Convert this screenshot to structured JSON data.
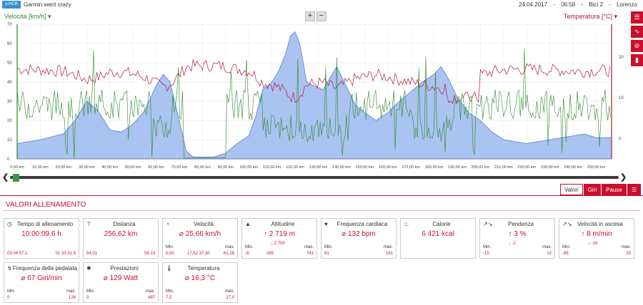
{
  "topbar": {
    "logo_text": "s-HCB",
    "title": "Garmin went crazy",
    "date": "24.04.2017",
    "time": "06:58",
    "bike": "Bici 2",
    "user": "Lorenzo"
  },
  "chart_header": {
    "left_axis": "Velocità [km/h]",
    "right_axis": "Temperatura [°C]",
    "zoom_in": "+",
    "zoom_out": "−"
  },
  "tools": [
    "list-icon",
    "line-chart-icon",
    "no-symbol-icon",
    "bar-chart-icon"
  ],
  "chart_data": {
    "type": "line",
    "x_unit": "km",
    "x_ticks": [
      "0,00 km",
      "10,00 km",
      "20,00 km",
      "30,00 km",
      "40,00 km",
      "50,00 km",
      "60,00 km",
      "70,00 km",
      "80,00 km",
      "90,00 km",
      "100,00 km",
      "110,00 km",
      "120,00 km",
      "130,00 km",
      "140,00 km",
      "150,00 km",
      "160,00 km",
      "170,00 km",
      "180,00 km",
      "190,00 km",
      "200,00 km",
      "210,00 km",
      "220,00 km",
      "230,00 km",
      "240,00 km",
      "250,00 km"
    ],
    "x_range": [
      0,
      256.62
    ],
    "y_left_ticks": [
      0,
      10,
      20,
      30,
      40,
      50,
      60,
      70
    ],
    "y_left_range": [
      0,
      70
    ],
    "y_right_ticks": [
      0,
      10,
      20
    ],
    "y_right_range": [
      -5,
      28
    ],
    "altitude_profile": [
      [
        0,
        8
      ],
      [
        10,
        10
      ],
      [
        20,
        13
      ],
      [
        25,
        20
      ],
      [
        30,
        30
      ],
      [
        35,
        25
      ],
      [
        40,
        15
      ],
      [
        45,
        14
      ],
      [
        50,
        18
      ],
      [
        55,
        25
      ],
      [
        60,
        38
      ],
      [
        63,
        44
      ],
      [
        66,
        40
      ],
      [
        70,
        20
      ],
      [
        73,
        4
      ],
      [
        76,
        1
      ],
      [
        85,
        1
      ],
      [
        90,
        3
      ],
      [
        95,
        8
      ],
      [
        100,
        12
      ],
      [
        103,
        22
      ],
      [
        106,
        36
      ],
      [
        110,
        40
      ],
      [
        113,
        46
      ],
      [
        116,
        55
      ],
      [
        118,
        64
      ],
      [
        120,
        66
      ],
      [
        122,
        60
      ],
      [
        125,
        40
      ],
      [
        128,
        38
      ],
      [
        132,
        36
      ],
      [
        135,
        42
      ],
      [
        138,
        48
      ],
      [
        142,
        38
      ],
      [
        146,
        28
      ],
      [
        150,
        24
      ],
      [
        155,
        20
      ],
      [
        160,
        24
      ],
      [
        165,
        30
      ],
      [
        170,
        35
      ],
      [
        175,
        40
      ],
      [
        180,
        44
      ],
      [
        183,
        48
      ],
      [
        186,
        42
      ],
      [
        190,
        32
      ],
      [
        195,
        24
      ],
      [
        200,
        20
      ],
      [
        205,
        14
      ],
      [
        210,
        10
      ],
      [
        220,
        8
      ],
      [
        225,
        9
      ],
      [
        230,
        10
      ],
      [
        240,
        12
      ],
      [
        245,
        13
      ],
      [
        250,
        11
      ],
      [
        256.62,
        11
      ]
    ],
    "series": [
      {
        "name": "Velocità",
        "color": "#2a8a2a",
        "axis": "left"
      },
      {
        "name": "Temperatura",
        "color": "#b2183a",
        "axis": "right"
      },
      {
        "name": "Altitudine",
        "color": "#7fa3e8",
        "axis": "left"
      }
    ],
    "grid": true
  },
  "tabs": [
    {
      "label": "Valori",
      "active": true
    },
    {
      "label": "Giri",
      "active": false
    },
    {
      "label": "Pause",
      "active": false
    }
  ],
  "panel": {
    "title": "VALORI ALLENAMENTO",
    "cards": [
      {
        "id": "tempo",
        "icon": "◷",
        "title": "Tempo di allenamento",
        "value": "10:00:09.6 h",
        "min_label": "",
        "max_label": "",
        "min": "03:04:57.1",
        "avg": "",
        "max": "01:33:31.5",
        "sub_left": "",
        "sub_right": ""
      },
      {
        "id": "distanza",
        "icon": "⊤",
        "title": "Distanza",
        "value": "256,62 km",
        "min_label": "",
        "max_label": "",
        "min": "54,01",
        "avg": "",
        "max": "58,13",
        "sub_left": "",
        "sub_right": ""
      },
      {
        "id": "velocita",
        "icon": "◔",
        "title": "Velocità",
        "value": "⌀ 25,66 km/h",
        "min_label": "Min.",
        "max_label": "max.",
        "min": "0,00",
        "avg": "17,52   37,30",
        "max": "61,28",
        "sub_left": "",
        "sub_right": ""
      },
      {
        "id": "altitudine",
        "icon": "▲",
        "title": "Altitudine",
        "value": "↑ 2 719 m",
        "min_label": "Min.",
        "max_label": "max.",
        "min": "-8",
        "avg": "265",
        "max": "741",
        "sub_left": "↓ 2.700",
        "sub_right": ""
      },
      {
        "id": "frequenza",
        "icon": "♥",
        "title": "Frequenza cardiaca",
        "value": "⌀ 132 bpm",
        "min_label": "Min.",
        "max_label": "max.",
        "min": "81",
        "avg": "",
        "max": "161",
        "sub_left": "",
        "sub_right": ""
      },
      {
        "id": "calorie",
        "icon": "♨",
        "title": "Calorie",
        "value": "6 421 kcal",
        "min_label": "",
        "max_label": "",
        "min": "",
        "avg": "",
        "max": "",
        "sub_left": "",
        "sub_right": ""
      },
      {
        "id": "pendenza",
        "icon": "↗↘",
        "title": "Pendenza",
        "value": "↑ 3 %",
        "min_label": "Min.",
        "max_label": "max.",
        "min": "-15",
        "avg": "",
        "max": "12",
        "sub_left": "↓ -2",
        "sub_right": ""
      },
      {
        "id": "ascesa",
        "icon": "↗↘",
        "title": "Velocità in ascesa",
        "value": "↑ 8 m/min",
        "min_label": "Min.",
        "max_label": "max.",
        "min": "-86",
        "avg": "",
        "max": "20",
        "sub_left": "↓ -18",
        "sub_right": ""
      },
      {
        "id": "pedalata",
        "icon": "↯",
        "title": "Frequenza della pedalata",
        "value": "⌀ 67 Giri/min",
        "min_label": "Min.",
        "max_label": "max.",
        "min": "0",
        "avg": "",
        "max": "124",
        "sub_left": "",
        "sub_right": ""
      },
      {
        "id": "prestazioni",
        "icon": "✺",
        "title": "Prestazioni",
        "value": "⌀ 129 Watt",
        "min_label": "Min.",
        "max_label": "max.",
        "min": "0",
        "avg": "",
        "max": "497",
        "sub_left": "",
        "sub_right": ""
      },
      {
        "id": "temperatura",
        "icon": "🌡",
        "title": "Temperatura",
        "value": "⌀ 16,3 °C",
        "min_label": "Min.",
        "max_label": "max.",
        "min": "7,0",
        "avg": "",
        "max": "27,0",
        "sub_left": "",
        "sub_right": ""
      }
    ]
  },
  "colors": {
    "accent": "#c8102e",
    "speed": "#2a8a2a",
    "temperature": "#b2183a",
    "altitude": "#7fa3e8"
  }
}
